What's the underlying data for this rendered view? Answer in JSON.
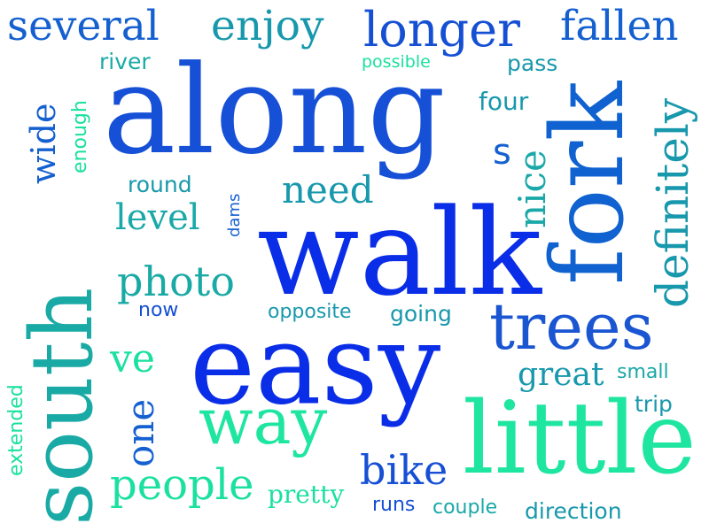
{
  "words": [
    {
      "text": "along",
      "color": "#1650d6"
    },
    {
      "text": "walk",
      "color": "#0a2ee8"
    },
    {
      "text": "easy",
      "color": "#0a2ee8"
    },
    {
      "text": "fork",
      "color": "#1062d0"
    },
    {
      "text": "little",
      "color": "#1ee6a0"
    },
    {
      "text": "south",
      "color": "#1aaaa5"
    },
    {
      "text": "trees",
      "color": "#1a55d2"
    },
    {
      "text": "way",
      "color": "#1ee6a0"
    },
    {
      "text": "longer",
      "color": "#1550d4"
    },
    {
      "text": "several",
      "color": "#1560d0"
    },
    {
      "text": "enjoy",
      "color": "#1898ac"
    },
    {
      "text": "fallen",
      "color": "#1560d0"
    },
    {
      "text": "definitely",
      "color": "#1898ac"
    },
    {
      "text": "people",
      "color": "#1ae0a0"
    },
    {
      "text": "photo",
      "color": "#1aaaa5"
    },
    {
      "text": "need",
      "color": "#1898ac"
    },
    {
      "text": "level",
      "color": "#1aa8a8"
    },
    {
      "text": "nice",
      "color": "#1aa8a8"
    },
    {
      "text": "wide",
      "color": "#1560d0"
    },
    {
      "text": "one",
      "color": "#1560d0"
    },
    {
      "text": "ve",
      "color": "#1ae0a0"
    },
    {
      "text": "bike",
      "color": "#1550d4"
    },
    {
      "text": "great",
      "color": "#1898ac"
    },
    {
      "text": "pretty",
      "color": "#1ae0a0"
    },
    {
      "text": "extended",
      "color": "#1ae0a0"
    },
    {
      "text": "enough",
      "color": "#1ae0a0"
    },
    {
      "text": "river",
      "color": "#1aaaa5"
    },
    {
      "text": "possible",
      "color": "#1ae0a0"
    },
    {
      "text": "pass",
      "color": "#1898ac"
    },
    {
      "text": "four",
      "color": "#1898ac"
    },
    {
      "text": "s",
      "color": "#1560d0"
    },
    {
      "text": "round",
      "color": "#1898ac"
    },
    {
      "text": "dams",
      "color": "#1560d0"
    },
    {
      "text": "now",
      "color": "#1550d4"
    },
    {
      "text": "opposite",
      "color": "#1898ac"
    },
    {
      "text": "going",
      "color": "#1898ac"
    },
    {
      "text": "small",
      "color": "#1aa8a8"
    },
    {
      "text": "trip",
      "color": "#1898ac"
    },
    {
      "text": "runs",
      "color": "#1550d4"
    },
    {
      "text": "couple",
      "color": "#1aa8a8"
    },
    {
      "text": "direction",
      "color": "#1898ac"
    }
  ]
}
